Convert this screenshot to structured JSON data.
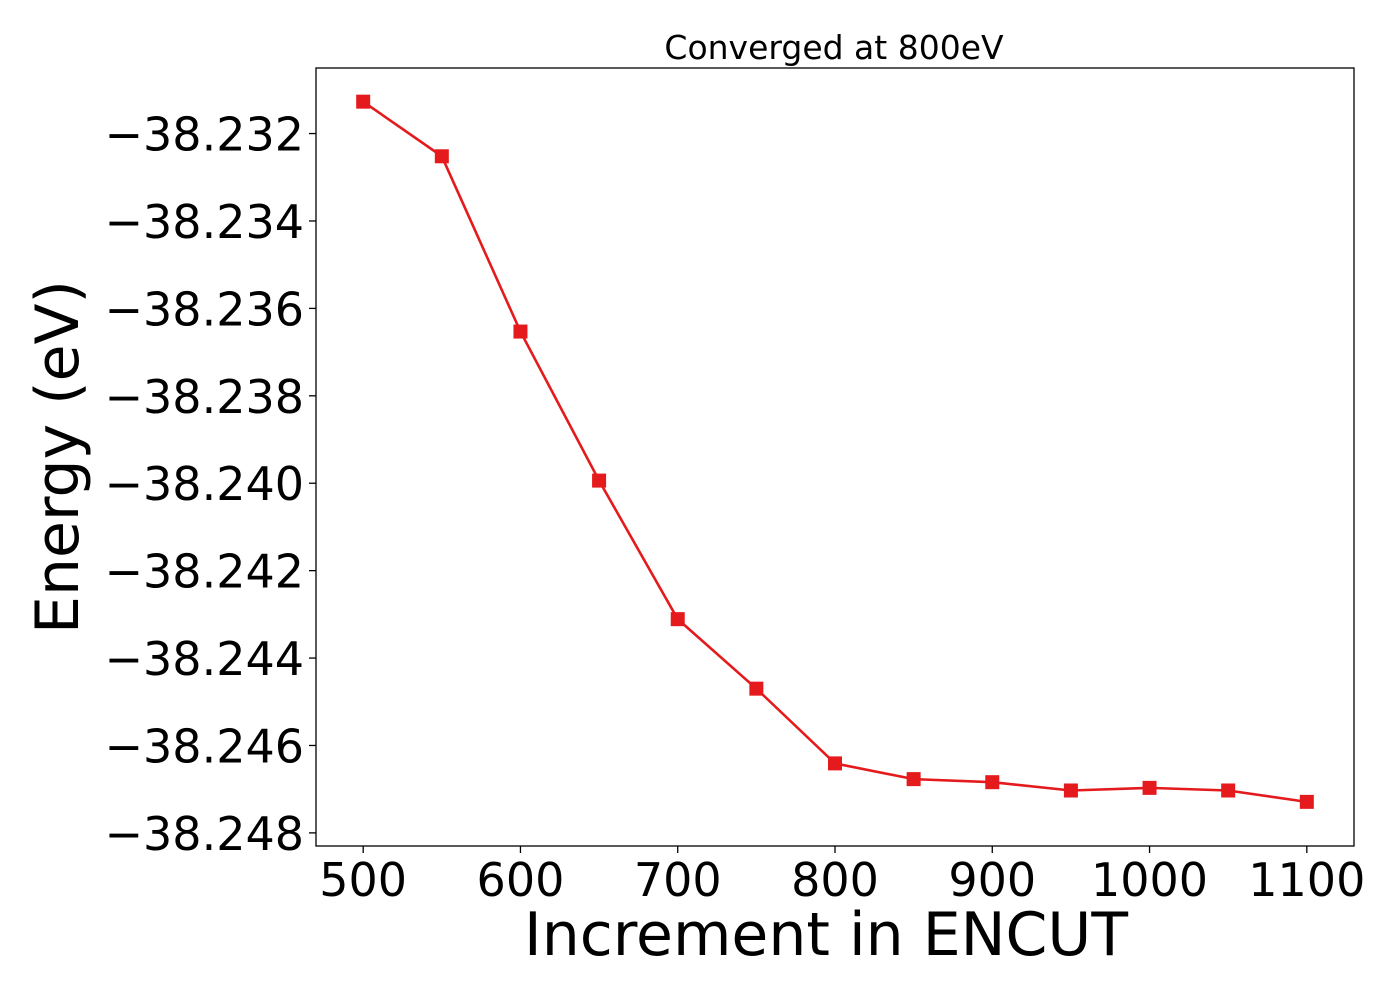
{
  "chart_data": {
    "type": "line",
    "title": "Converged at 800eV",
    "xlabel": "Increment in ENCUT",
    "ylabel": "Energy (eV)",
    "x": [
      500,
      550,
      600,
      650,
      700,
      750,
      800,
      850,
      900,
      950,
      1000,
      1050,
      1100
    ],
    "series": [
      {
        "values": [
          -38.23127,
          -38.23252,
          -38.23653,
          -38.23994,
          -38.24311,
          -38.2447,
          -38.24641,
          -38.24677,
          -38.24684,
          -38.24703,
          -38.24697,
          -38.24703,
          -38.24729
        ],
        "color": "#e41a1c",
        "marker": "square"
      }
    ],
    "xlim": [
      470,
      1130
    ],
    "ylim": [
      -38.2483,
      -38.2305
    ],
    "xticks": [
      500,
      600,
      700,
      800,
      900,
      1000,
      1100
    ],
    "xtick_labels": [
      "500",
      "600",
      "700",
      "800",
      "900",
      "1000",
      "1100"
    ],
    "yticks": [
      -38.232,
      -38.234,
      -38.236,
      -38.238,
      -38.24,
      -38.242,
      -38.244,
      -38.246,
      -38.248
    ],
    "ytick_labels": [
      "−38.232",
      "−38.234",
      "−38.236",
      "−38.238",
      "−38.240",
      "−38.242",
      "−38.244",
      "−38.246",
      "−38.248"
    ],
    "grid": false,
    "legend": false
  }
}
